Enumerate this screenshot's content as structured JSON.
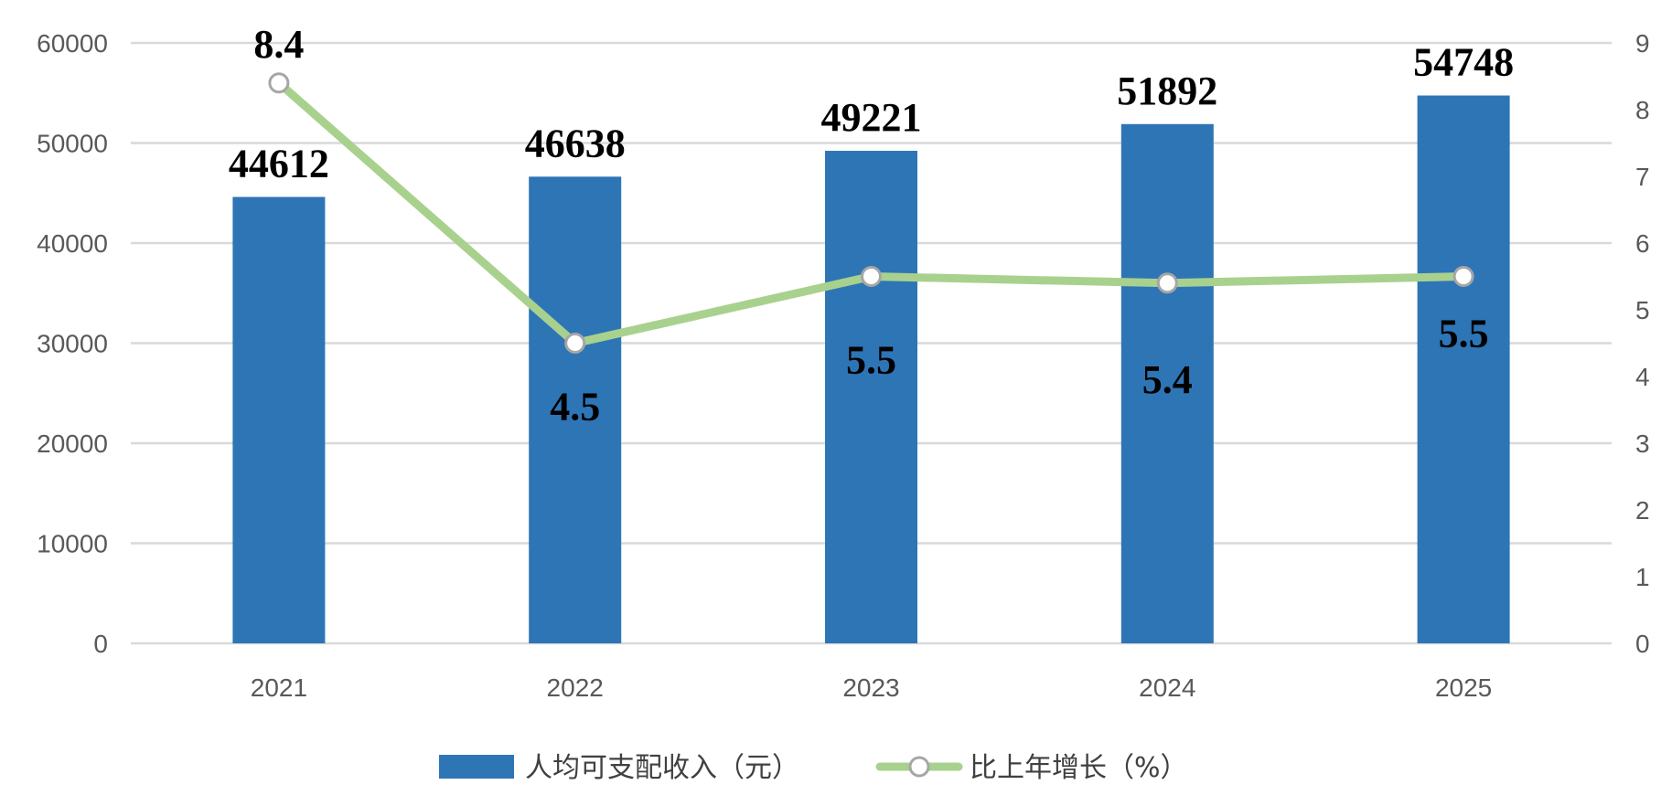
{
  "chart_data": {
    "type": "bar",
    "categories": [
      "2021",
      "2022",
      "2023",
      "2024",
      "2025"
    ],
    "series": [
      {
        "name": "人均可支配收入（元）",
        "type": "bar",
        "axis": "left",
        "values": [
          44612,
          46638,
          49221,
          51892,
          54748
        ],
        "labels": [
          "44612",
          "46638",
          "49221",
          "51892",
          "54748"
        ],
        "color": "#2E75B6"
      },
      {
        "name": "比上年增长（%）",
        "type": "line",
        "axis": "right",
        "values": [
          8.4,
          4.5,
          5.5,
          5.4,
          5.5
        ],
        "labels": [
          "8.4",
          "4.5",
          "5.5",
          "5.4",
          "5.5"
        ],
        "color": "#A9D18E"
      }
    ],
    "y_left": {
      "ylim": [
        0,
        60000
      ],
      "ticks": [
        "0",
        "10000",
        "20000",
        "30000",
        "40000",
        "50000",
        "60000"
      ]
    },
    "y_right": {
      "ylim": [
        0,
        9
      ],
      "ticks": [
        "0",
        "1",
        "2",
        "3",
        "4",
        "5",
        "6",
        "7",
        "8",
        "9"
      ]
    },
    "grid": true,
    "legend_position": "bottom"
  }
}
